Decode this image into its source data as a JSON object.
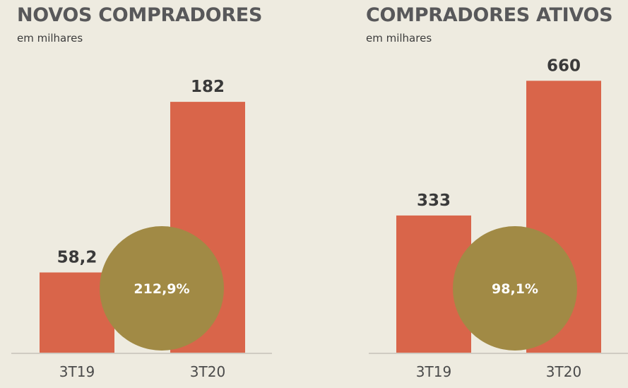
{
  "colors": {
    "bar": "#d9654a",
    "circle": "#a18a45",
    "axis": "#cfcbc2"
  },
  "chart_data": [
    {
      "type": "bar",
      "title": "NOVOS COMPRADORES",
      "subtitle": "em milhares",
      "categories": [
        "3T19",
        "3T20"
      ],
      "values": [
        58.2,
        182
      ],
      "value_labels": [
        "58,2",
        "182"
      ],
      "growth_label": "212,9%",
      "ylim": [
        0,
        200
      ]
    },
    {
      "type": "bar",
      "title": "COMPRADORES ATIVOS",
      "subtitle": "em milhares",
      "categories": [
        "3T19",
        "3T20"
      ],
      "values": [
        333,
        660
      ],
      "value_labels": [
        "333",
        "660"
      ],
      "growth_label": "98,1%",
      "ylim": [
        0,
        712
      ]
    }
  ]
}
